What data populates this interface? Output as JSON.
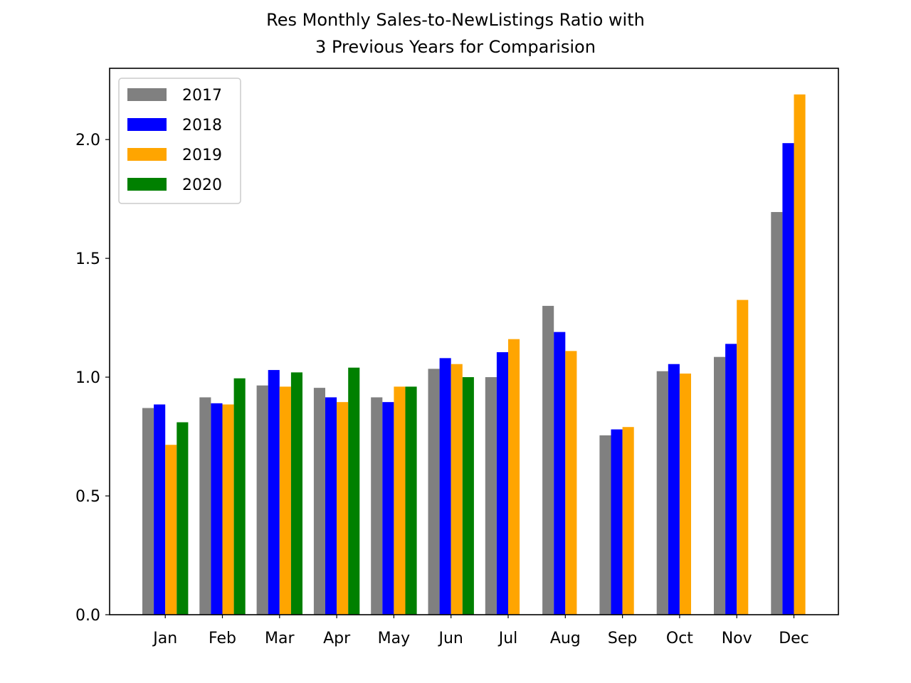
{
  "chart_data": {
    "type": "bar",
    "title_lines": [
      "Res Monthly Sales-to-NewListings Ratio with",
      "3 Previous Years for Comparision"
    ],
    "xlabel": "",
    "ylabel": "",
    "categories": [
      "Jan",
      "Feb",
      "Mar",
      "Apr",
      "May",
      "Jun",
      "Jul",
      "Aug",
      "Sep",
      "Oct",
      "Nov",
      "Dec"
    ],
    "ylim": [
      0,
      2.3
    ],
    "yticks": [
      0.0,
      0.5,
      1.0,
      1.5,
      2.0
    ],
    "ytick_labels": [
      "0.0",
      "0.5",
      "1.0",
      "1.5",
      "2.0"
    ],
    "grid": false,
    "legend_position": "top-left",
    "series": [
      {
        "name": "2017",
        "color": "#808080",
        "values": [
          0.87,
          0.915,
          0.965,
          0.955,
          0.915,
          1.035,
          1.0,
          1.3,
          0.755,
          1.025,
          1.085,
          1.695
        ]
      },
      {
        "name": "2018",
        "color": "#0000ff",
        "values": [
          0.885,
          0.89,
          1.03,
          0.915,
          0.895,
          1.08,
          1.105,
          1.19,
          0.78,
          1.055,
          1.14,
          1.985
        ]
      },
      {
        "name": "2019",
        "color": "#ffa500",
        "values": [
          0.715,
          0.885,
          0.96,
          0.895,
          0.96,
          1.055,
          1.16,
          1.11,
          0.79,
          1.015,
          1.325,
          2.19
        ]
      },
      {
        "name": "2020",
        "color": "#008000",
        "values": [
          0.81,
          0.995,
          1.02,
          1.04,
          0.96,
          1.0,
          null,
          null,
          null,
          null,
          null,
          null
        ]
      }
    ]
  }
}
